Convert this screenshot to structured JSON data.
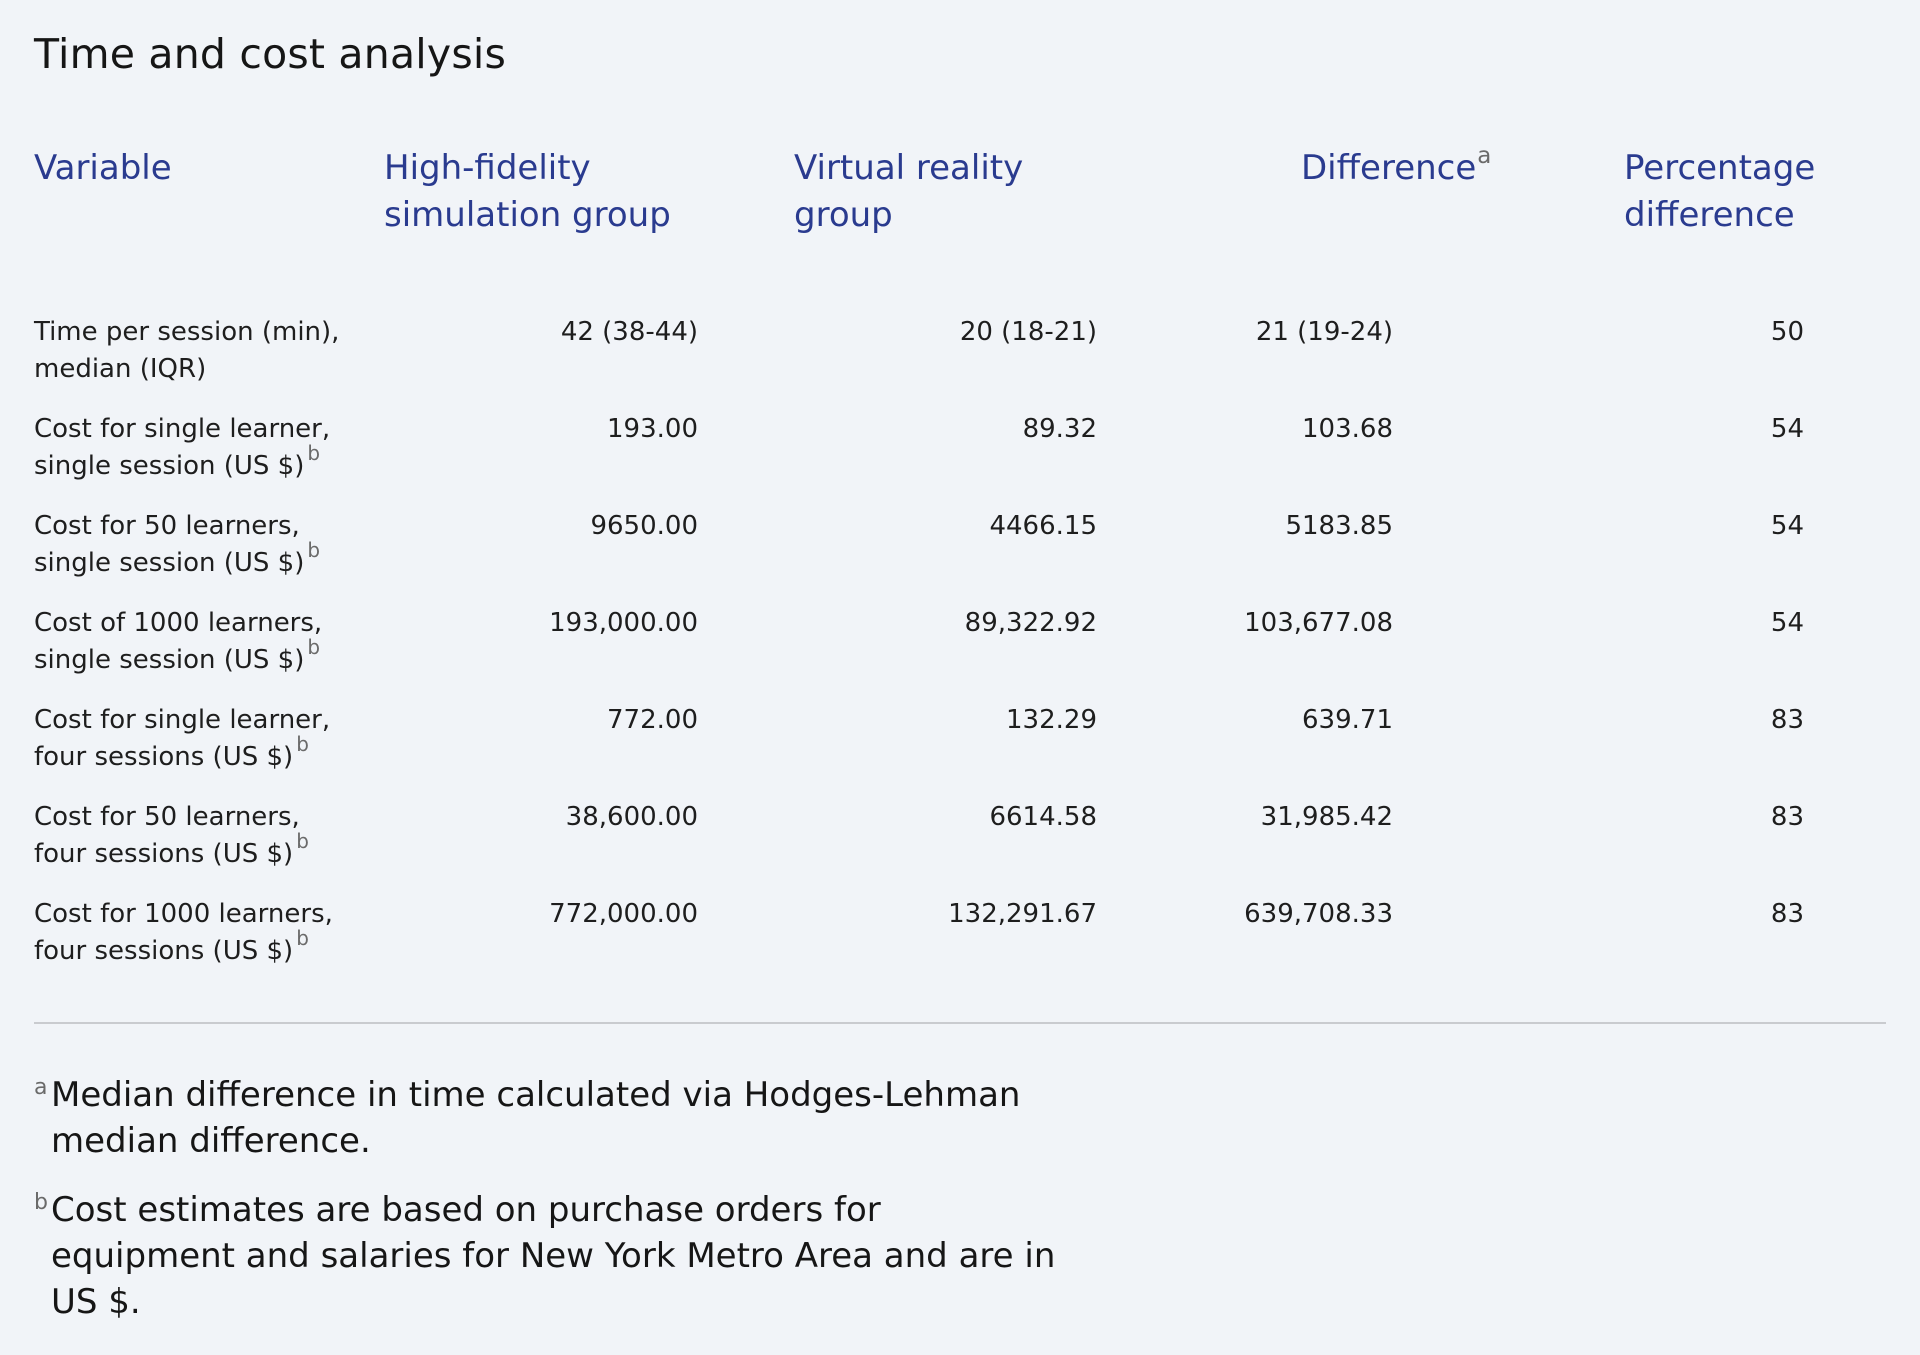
{
  "title": "Time and cost analysis",
  "table": {
    "headers": [
      {
        "label": "Variable",
        "sup": ""
      },
      {
        "label": "High-fidelity simulation group",
        "sup": ""
      },
      {
        "label": "Virtual reality group",
        "sup": ""
      },
      {
        "label": "Difference",
        "sup": "a"
      },
      {
        "label": "Percentage difference",
        "sup": ""
      }
    ],
    "rows": [
      {
        "variable": "Time per session (min), median (IQR)",
        "sup": "",
        "high_fidelity": "42 (38-44)",
        "virtual_reality": "20 (18-21)",
        "difference": "21 (19-24)",
        "percentage": "50"
      },
      {
        "variable": "Cost for single learner, single session (US $)",
        "sup": "b",
        "high_fidelity": "193.00",
        "virtual_reality": "89.32",
        "difference": "103.68",
        "percentage": "54"
      },
      {
        "variable": "Cost for 50 learners, single session (US $)",
        "sup": "b",
        "high_fidelity": "9650.00",
        "virtual_reality": "4466.15",
        "difference": "5183.85",
        "percentage": "54"
      },
      {
        "variable": "Cost of 1000 learners, single session (US $)",
        "sup": "b",
        "high_fidelity": "193,000.00",
        "virtual_reality": "89,322.92",
        "difference": "103,677.08",
        "percentage": "54"
      },
      {
        "variable": "Cost for single learner, four sessions (US $)",
        "sup": "b",
        "high_fidelity": "772.00",
        "virtual_reality": "132.29",
        "difference": "639.71",
        "percentage": "83"
      },
      {
        "variable": "Cost for 50 learners, four sessions (US $)",
        "sup": "b",
        "high_fidelity": "38,600.00",
        "virtual_reality": "6614.58",
        "difference": "31,985.42",
        "percentage": "83"
      },
      {
        "variable": "Cost for 1000 learners, four sessions (US $)",
        "sup": "b",
        "high_fidelity": "772,000.00",
        "virtual_reality": "132,291.67",
        "difference": "639,708.33",
        "percentage": "83"
      }
    ]
  },
  "footnotes": [
    {
      "mark": "a",
      "text": "Median difference in time calculated via Hodges-Lehman median difference."
    },
    {
      "mark": "b",
      "text": "Cost estimates are based on purchase orders for equipment and salaries for New York Metro Area and are in US $."
    }
  ]
}
